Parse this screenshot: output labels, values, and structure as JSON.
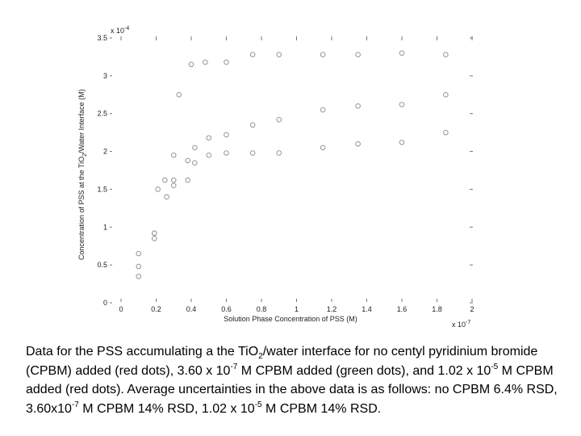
{
  "chart_data": {
    "type": "scatter",
    "xlabel": "Solution Phase Concentration of PSS (M)",
    "ylabel_prefix": "Concentration of PSS at the TiO",
    "ylabel_sub": "2",
    "ylabel_suffix": "/Water Interface (M)",
    "x_multiplier_base": "x 10",
    "x_multiplier_exp": "-7",
    "y_multiplier_base": "x 10",
    "y_multiplier_exp": "-4",
    "xlim": [
      0,
      2
    ],
    "ylim": [
      0,
      3.5
    ],
    "x_ticks": [
      "0",
      "0.2",
      "0.4",
      "0.6",
      "0.8",
      "1",
      "1.2",
      "1.4",
      "1.6",
      "1.8",
      "2"
    ],
    "y_ticks": [
      "0",
      "0.5",
      "1",
      "1.5",
      "2",
      "2.5",
      "3",
      "3.5"
    ],
    "series": [
      {
        "color": "#8a8a8a",
        "x": [
          0.1,
          0.1,
          0.1,
          0.19,
          0.21,
          0.25,
          0.3,
          0.33,
          0.4,
          0.48,
          0.6,
          0.75,
          0.9,
          1.15,
          1.35,
          1.6,
          1.85
        ],
        "y": [
          0.35,
          0.48,
          0.65,
          0.85,
          1.5,
          1.62,
          1.95,
          2.75,
          3.15,
          3.18,
          3.18,
          3.28,
          3.28,
          3.28,
          3.28,
          3.3,
          3.28
        ]
      },
      {
        "color": "#8a8a8a",
        "x": [
          0.19,
          0.26,
          0.3,
          0.38,
          0.42,
          0.5,
          0.6,
          0.75,
          0.9,
          1.15,
          1.35,
          1.6,
          1.85
        ],
        "y": [
          0.92,
          1.4,
          1.55,
          1.62,
          2.05,
          2.18,
          2.22,
          2.35,
          2.42,
          2.55,
          2.6,
          2.62,
          2.75
        ]
      },
      {
        "color": "#8a8a8a",
        "x": [
          0.19,
          0.3,
          0.38,
          0.42,
          0.5,
          0.6,
          0.75,
          0.9,
          1.15,
          1.35,
          1.6,
          1.85
        ],
        "y": [
          0.92,
          1.62,
          1.88,
          1.85,
          1.95,
          1.98,
          1.98,
          1.98,
          2.05,
          2.1,
          2.12,
          2.25
        ]
      }
    ]
  },
  "caption": {
    "p1": "Data for the PSS accumulating a the TiO",
    "p1_sub": "2",
    "p2": "/water interface for no centyl pyridinium bromide (CPBM) added (red dots), 3.60 x 10",
    "p2_sup": "-7",
    "p3": " M CPBM added (green dots), and 1.02 x 10",
    "p3_sup": "-5",
    "p4": " M CPBM added (red dots).  Average uncertainties in the above data is as follows: no CPBM 6.4% RSD, 3.60x10",
    "p4_sup": "-7",
    "p5": " M CPBM 14% RSD, 1.02 x 10",
    "p5_sup": "-5",
    "p6": " M CPBM 14% RSD."
  }
}
